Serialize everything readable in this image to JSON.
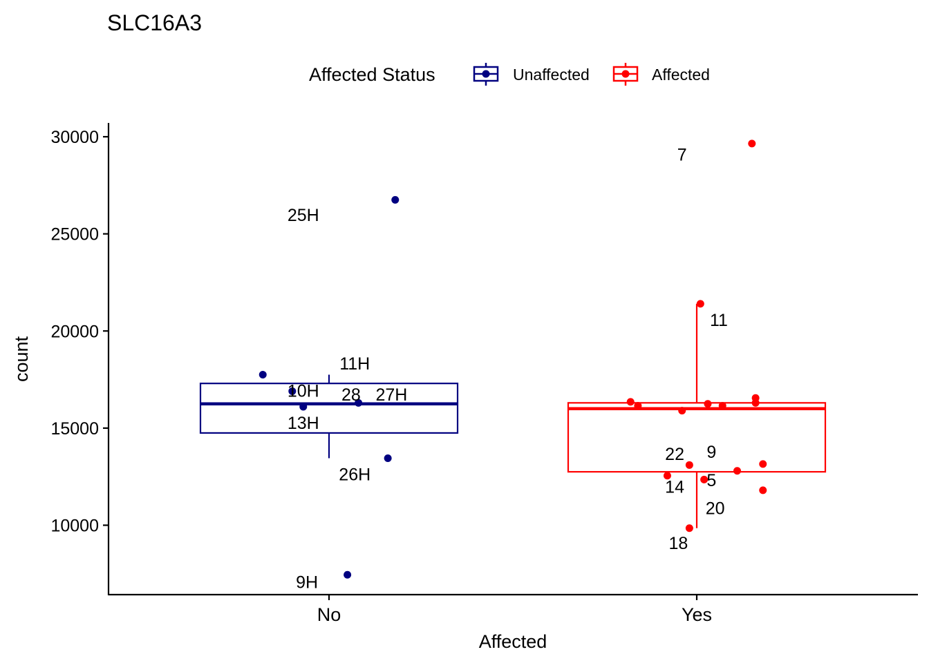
{
  "chart_data": {
    "type": "box",
    "title": "SLC16A3",
    "xlabel": "Affected",
    "ylabel": "count",
    "categories": [
      "No",
      "Yes"
    ],
    "ylim": [
      6500,
      30700
    ],
    "yticks": [
      10000,
      15000,
      20000,
      25000,
      30000
    ],
    "grid": false,
    "legend": {
      "title": "Affected Status",
      "position": "top",
      "entries": [
        {
          "label": "Unaffected",
          "color": "#000080"
        },
        {
          "label": "Affected",
          "color": "#ff0000"
        }
      ]
    },
    "series": [
      {
        "name": "Unaffected",
        "category": "No",
        "color": "#000080",
        "box": {
          "lower_whisker": 13450,
          "q1": 14750,
          "median": 16250,
          "q3": 17300,
          "upper_whisker": 17750
        },
        "points": [
          {
            "x_offset": -0.18,
            "y": 17750
          },
          {
            "x_offset": -0.1,
            "y": 16900
          },
          {
            "x_offset": -0.07,
            "y": 16100
          },
          {
            "x_offset": 0.08,
            "y": 16300
          },
          {
            "x_offset": 0.16,
            "y": 13450
          },
          {
            "x_offset": 0.18,
            "y": 26750
          },
          {
            "x_offset": 0.05,
            "y": 7450
          }
        ],
        "labels": [
          {
            "text": "25H",
            "x_offset": -0.07,
            "y": 25950
          },
          {
            "text": "11H",
            "x_offset": 0.07,
            "y": 18300
          },
          {
            "text": "10H",
            "x_offset": -0.07,
            "y": 16900
          },
          {
            "text": "28",
            "x_offset": 0.06,
            "y": 16700
          },
          {
            "text": "27H",
            "x_offset": 0.17,
            "y": 16700
          },
          {
            "text": "13H",
            "x_offset": -0.07,
            "y": 15250
          },
          {
            "text": "26H",
            "x_offset": 0.07,
            "y": 12600
          },
          {
            "text": "9H",
            "x_offset": -0.06,
            "y": 7050
          }
        ]
      },
      {
        "name": "Affected",
        "category": "Yes",
        "color": "#ff0000",
        "box": {
          "lower_whisker": 9850,
          "q1": 12750,
          "median": 16000,
          "q3": 16300,
          "upper_whisker": 21400
        },
        "points": [
          {
            "x_offset": 0.15,
            "y": 29650
          },
          {
            "x_offset": 0.01,
            "y": 21400
          },
          {
            "x_offset": -0.18,
            "y": 16350
          },
          {
            "x_offset": -0.16,
            "y": 16150
          },
          {
            "x_offset": -0.04,
            "y": 15900
          },
          {
            "x_offset": 0.03,
            "y": 16250
          },
          {
            "x_offset": 0.07,
            "y": 16150
          },
          {
            "x_offset": 0.16,
            "y": 16550
          },
          {
            "x_offset": 0.16,
            "y": 16300
          },
          {
            "x_offset": -0.02,
            "y": 13100
          },
          {
            "x_offset": 0.18,
            "y": 13150
          },
          {
            "x_offset": 0.11,
            "y": 12800
          },
          {
            "x_offset": -0.08,
            "y": 12550
          },
          {
            "x_offset": 0.02,
            "y": 12350
          },
          {
            "x_offset": 0.18,
            "y": 11800
          },
          {
            "x_offset": -0.02,
            "y": 9850
          }
        ],
        "labels": [
          {
            "text": "7",
            "x_offset": -0.04,
            "y": 29050
          },
          {
            "text": "11",
            "x_offset": 0.06,
            "y": 20550
          },
          {
            "text": "22",
            "x_offset": -0.06,
            "y": 13650
          },
          {
            "text": "9",
            "x_offset": 0.04,
            "y": 13750
          },
          {
            "text": "5",
            "x_offset": 0.04,
            "y": 12300
          },
          {
            "text": "14",
            "x_offset": -0.06,
            "y": 11950
          },
          {
            "text": "20",
            "x_offset": 0.05,
            "y": 10850
          },
          {
            "text": "18",
            "x_offset": -0.05,
            "y": 9050
          }
        ]
      }
    ]
  }
}
